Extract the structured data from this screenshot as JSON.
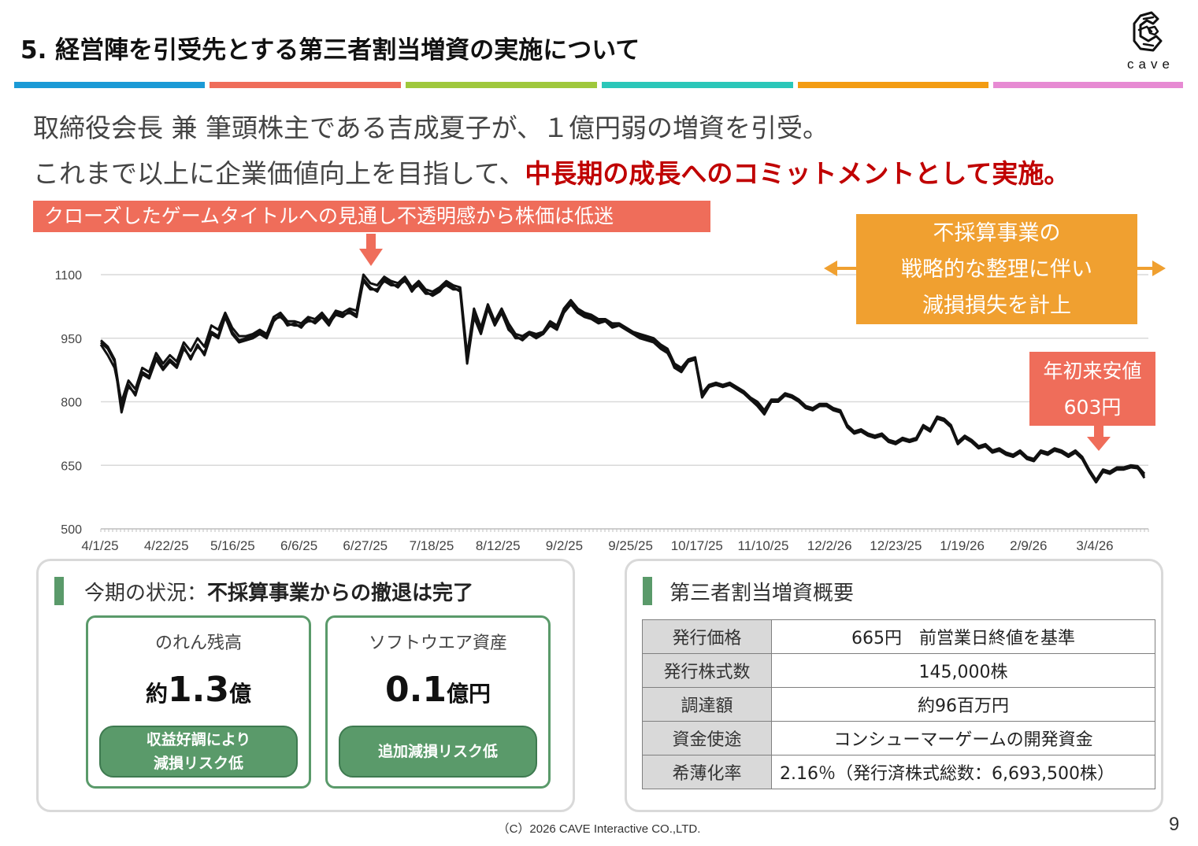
{
  "header": {
    "title": "5.  経営陣を引受先とする第三者割当増資の実施について",
    "logo_text": "cave"
  },
  "colorbar": {
    "colors": [
      "#1b9ad6",
      "#ef6d5a",
      "#9fc83c",
      "#2bc7b9",
      "#f39c12",
      "#e78ad3"
    ]
  },
  "lead": {
    "line1": "取締役会長 兼 筆頭株主である吉成夏子が、１億円弱の増資を引受。",
    "line2_plain": "これまで以上に企業価値向上を目指して、",
    "line2_emph": "中長期の成長へのコミットメントとして実施。"
  },
  "callouts": {
    "closed_games": "クローズしたゲームタイトルへの見通し不透明感から株価は低迷",
    "impairment": [
      "不採算事業の",
      "戦略的な整理に伴い",
      "減損損失を計上"
    ],
    "ytd_low": [
      "年初来安値",
      "603円"
    ]
  },
  "chart_data": {
    "type": "line",
    "x_tick_labels": [
      "4/1/25",
      "4/22/25",
      "5/16/25",
      "6/6/25",
      "6/27/25",
      "7/18/25",
      "8/12/25",
      "9/2/25",
      "9/25/25",
      "10/17/25",
      "11/10/25",
      "12/2/26",
      "12/23/25",
      "1/19/26",
      "2/9/26",
      "3/4/26"
    ],
    "y_ticks": [
      500,
      650,
      800,
      950,
      1100
    ],
    "ylim": [
      500,
      1100
    ],
    "grid": true,
    "series": [
      {
        "values": [
          940,
          925,
          895,
          775,
          840,
          815,
          870,
          860,
          905,
          880,
          900,
          885,
          930,
          900,
          935,
          910,
          960,
          950,
          1000,
          960,
          940,
          945,
          950,
          960,
          950,
          990,
          1005,
          980,
          985,
          975,
          995,
          985,
          1000,
          980,
          1010,
          1005,
          1010,
          1000,
          1090,
          1070,
          1060,
          1090,
          1080,
          1070,
          1090,
          1060,
          1080,
          1060,
          1050,
          1060,
          1080,
          1070,
          1060,
          890,
          1000,
          960,
          1020,
          980,
          1010,
          970,
          955,
          945,
          960,
          955,
          960,
          980,
          970,
          1010,
          1030,
          1010,
          1000,
          995,
          985,
          990,
          975,
          980,
          970,
          960,
          955,
          950,
          945,
          930,
          920,
          880,
          870,
          895,
          900,
          810,
          835,
          840,
          835,
          840,
          830,
          820,
          805,
          790,
          770,
          800,
          800,
          815,
          810,
          800,
          785,
          780,
          790,
          790,
          780,
          775,
          740,
          725,
          730,
          720,
          715,
          720,
          705,
          700,
          710,
          705,
          710,
          740,
          730,
          760,
          755,
          740,
          700,
          715,
          705,
          690,
          695,
          680,
          685,
          675,
          670,
          680,
          665,
          660,
          680,
          675,
          685,
          680,
          670,
          680,
          665,
          635,
          610,
          635,
          630,
          640,
          640,
          645,
          645,
          620
        ]
      },
      {
        "values": [
          935,
          910,
          880,
          800,
          850,
          830,
          880,
          870,
          915,
          890,
          910,
          895,
          940,
          920,
          950,
          930,
          980,
          970,
          1010,
          975,
          955,
          955,
          960,
          970,
          960,
          1000,
          1010,
          990,
          990,
          985,
          1000,
          995,
          1010,
          990,
          1015,
          1010,
          1020,
          1015,
          1100,
          1080,
          1075,
          1095,
          1085,
          1080,
          1095,
          1070,
          1085,
          1065,
          1060,
          1070,
          1085,
          1075,
          1070,
          910,
          1020,
          975,
          1030,
          990,
          1020,
          985,
          960,
          955,
          965,
          960,
          965,
          990,
          980,
          1020,
          1040,
          1020,
          1010,
          1005,
          995,
          995,
          985,
          985,
          975,
          965,
          960,
          955,
          950,
          935,
          925,
          890,
          880,
          900,
          905,
          820,
          840,
          845,
          840,
          845,
          835,
          825,
          810,
          800,
          780,
          805,
          805,
          820,
          815,
          805,
          790,
          785,
          795,
          795,
          785,
          780,
          745,
          730,
          735,
          725,
          720,
          725,
          710,
          705,
          715,
          710,
          715,
          745,
          735,
          765,
          760,
          745,
          705,
          720,
          710,
          695,
          700,
          685,
          690,
          680,
          675,
          685,
          670,
          665,
          685,
          680,
          690,
          685,
          675,
          685,
          670,
          640,
          615,
          640,
          635,
          645,
          645,
          650,
          648,
          630
        ]
      },
      {
        "values": [
          945,
          930,
          900,
          790,
          835,
          820,
          865,
          855,
          900,
          875,
          895,
          880,
          925,
          905,
          930,
          915,
          965,
          955,
          1005,
          965,
          945,
          950,
          955,
          965,
          955,
          995,
          1000,
          985,
          980,
          980,
          990,
          990,
          1005,
          985,
          1005,
          1000,
          1015,
          1005,
          1085,
          1065,
          1065,
          1085,
          1075,
          1075,
          1085,
          1065,
          1075,
          1055,
          1055,
          1065,
          1075,
          1065,
          1065,
          900,
          1010,
          965,
          1025,
          985,
          1015,
          975,
          950,
          950,
          960,
          950,
          960,
          985,
          975,
          1015,
          1035,
          1015,
          1005,
          1000,
          990,
          990,
          980,
          980,
          970,
          960,
          950,
          945,
          940,
          925,
          915,
          885,
          875,
          895,
          900,
          815,
          835,
          840,
          835,
          840,
          830,
          820,
          805,
          795,
          775,
          800,
          800,
          815,
          810,
          800,
          785,
          780,
          790,
          790,
          780,
          775,
          740,
          725,
          730,
          720,
          715,
          720,
          705,
          700,
          710,
          705,
          710,
          740,
          730,
          760,
          755,
          740,
          700,
          715,
          705,
          690,
          695,
          680,
          685,
          675,
          670,
          680,
          665,
          660,
          680,
          675,
          685,
          680,
          670,
          680,
          665,
          635,
          610,
          635,
          630,
          640,
          640,
          645,
          643,
          625
        ]
      }
    ]
  },
  "left_panel": {
    "title_plain": "今期の状況：",
    "title_bold": "不採算事業からの撤退は完了",
    "cards": [
      {
        "label": "のれん残高",
        "prefix": "約",
        "value": "1.3",
        "unit": "億",
        "pill": [
          "収益好調により",
          "減損リスク低"
        ]
      },
      {
        "label": "ソフトウエア資産",
        "prefix": "",
        "value": "0.1",
        "unit": "億円",
        "pill": [
          "追加減損リスク低"
        ]
      }
    ]
  },
  "right_panel": {
    "title": "第三者割当増資概要",
    "rows": [
      {
        "label": "発行価格",
        "value": "665円　前営業日終値を基準"
      },
      {
        "label": "発行株式数",
        "value": "145,000株"
      },
      {
        "label": "調達額",
        "value": "約96百万円"
      },
      {
        "label": "資金使途",
        "value": "コンシューマーゲームの開発資金"
      },
      {
        "label": "希薄化率",
        "value": "2.16％（発行済株式総数：6,693,500株）"
      }
    ]
  },
  "footer": {
    "copyright": "（C）2026 CAVE Interactive CO.,LTD.",
    "page": "9"
  }
}
